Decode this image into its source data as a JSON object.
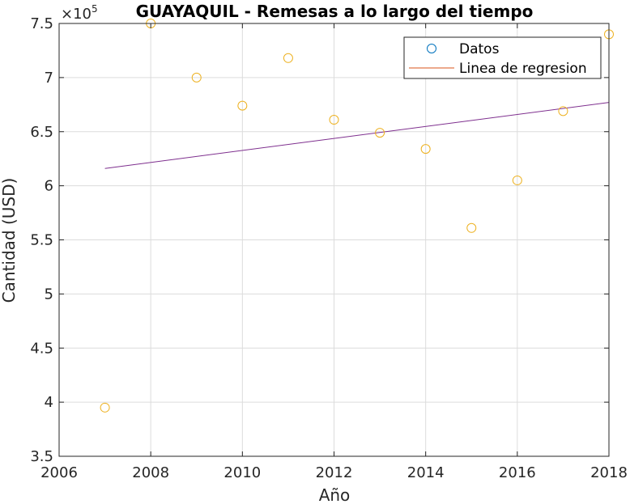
{
  "chart_data": {
    "type": "scatter",
    "title": "GUAYAQUIL - Remesas a lo largo del tiempo",
    "xlabel": "Año",
    "ylabel": "Cantidad (USD)",
    "exponent_label": "×10",
    "exponent_power": "5",
    "xlim": [
      2006,
      2018
    ],
    "ylim": [
      3.5,
      7.5
    ],
    "scale_factor": 100000,
    "grid": true,
    "xticks": [
      2006,
      2008,
      2010,
      2012,
      2014,
      2016,
      2018
    ],
    "yticks": [
      3.5,
      4,
      4.5,
      5,
      5.5,
      6,
      6.5,
      7,
      7.5
    ],
    "xtick_labels": [
      "2006",
      "2008",
      "2010",
      "2012",
      "2014",
      "2016",
      "2018"
    ],
    "ytick_labels": [
      "3.5",
      "4",
      "4.5",
      "5",
      "5.5",
      "6",
      "6.5",
      "7",
      "7.5"
    ],
    "series": [
      {
        "name": "Datos",
        "kind": "markers",
        "marker": "circle",
        "legend_color": "#0072BD",
        "color": "#EDB120",
        "x": [
          2007,
          2008,
          2009,
          2010,
          2011,
          2012,
          2013,
          2014,
          2015,
          2016,
          2017,
          2018
        ],
        "y": [
          3.95,
          7.5,
          7.0,
          6.74,
          7.18,
          6.61,
          6.49,
          6.34,
          5.61,
          6.05,
          6.69,
          7.4
        ]
      },
      {
        "name": "Linea de regresion",
        "kind": "line",
        "legend_color": "#D95319",
        "color": "#7E2F8E",
        "x": [
          2007,
          2018
        ],
        "y": [
          6.16,
          6.77
        ]
      }
    ],
    "legend_position": "top-right"
  }
}
